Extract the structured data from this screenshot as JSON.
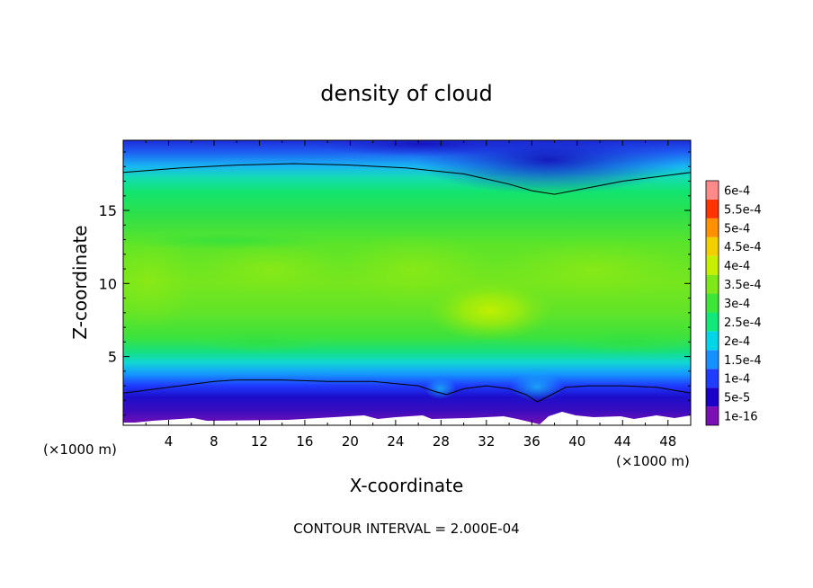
{
  "chart_data": {
    "type": "heatmap",
    "title": "density of cloud",
    "xlabel": "X-coordinate",
    "ylabel": "Z-coordinate",
    "x_unit": "(×1000 m)",
    "x_unit_right": "(×1000 m)",
    "footer": "CONTOUR INTERVAL = 2.000E-04",
    "xlim": [
      0,
      50
    ],
    "ylim": [
      0.3,
      19.8
    ],
    "x_ticks": [
      4,
      8,
      12,
      16,
      20,
      24,
      28,
      32,
      36,
      40,
      44,
      48
    ],
    "y_ticks": [
      5,
      10,
      15
    ],
    "colorbar": {
      "labels": [
        "1e-16",
        "5e-5",
        "1e-4",
        "1.5e-4",
        "2e-4",
        "2.5e-4",
        "3e-4",
        "3.5e-4",
        "4e-4",
        "4.5e-4",
        "5e-4",
        "5.5e-4",
        "6e-4"
      ],
      "colors": [
        "#7a10b4",
        "#1c00c8",
        "#1f3cff",
        "#1790ff",
        "#00d6e8",
        "#12e87a",
        "#3ee63a",
        "#7ee818",
        "#c6f000",
        "#f2d000",
        "#ff9000",
        "#ff3300",
        "#ff8a8a"
      ]
    },
    "contour_levels": [
      0.0002
    ],
    "contour_lines": [
      {
        "level": 0.0002,
        "label": "upper",
        "x": [
          0,
          5,
          10,
          15,
          20,
          25,
          30,
          34,
          36,
          38,
          40,
          44,
          48,
          50
        ],
        "z": [
          17.6,
          17.9,
          18.1,
          18.2,
          18.1,
          17.9,
          17.5,
          16.8,
          16.35,
          16.1,
          16.4,
          17.0,
          17.4,
          17.6
        ]
      },
      {
        "level": 0.0002,
        "label": "lower",
        "x": [
          0,
          2,
          5,
          8,
          10,
          14,
          18,
          22,
          26,
          27.5,
          28.5,
          30,
          32,
          34,
          35.5,
          36.5,
          37.5,
          39,
          41,
          44,
          47,
          50
        ],
        "z": [
          2.5,
          2.7,
          3.0,
          3.3,
          3.4,
          3.4,
          3.3,
          3.3,
          3.0,
          2.6,
          2.4,
          2.8,
          3.0,
          2.8,
          2.4,
          1.9,
          2.3,
          2.9,
          3.0,
          3.0,
          2.9,
          2.5
        ]
      }
    ],
    "features": [
      {
        "name": "maximum",
        "x": 31.5,
        "z": 7.8,
        "value": 0.00038
      },
      {
        "name": "minimum-gap",
        "x": 36.8,
        "z": 0.5,
        "value": 1e-16
      }
    ]
  }
}
